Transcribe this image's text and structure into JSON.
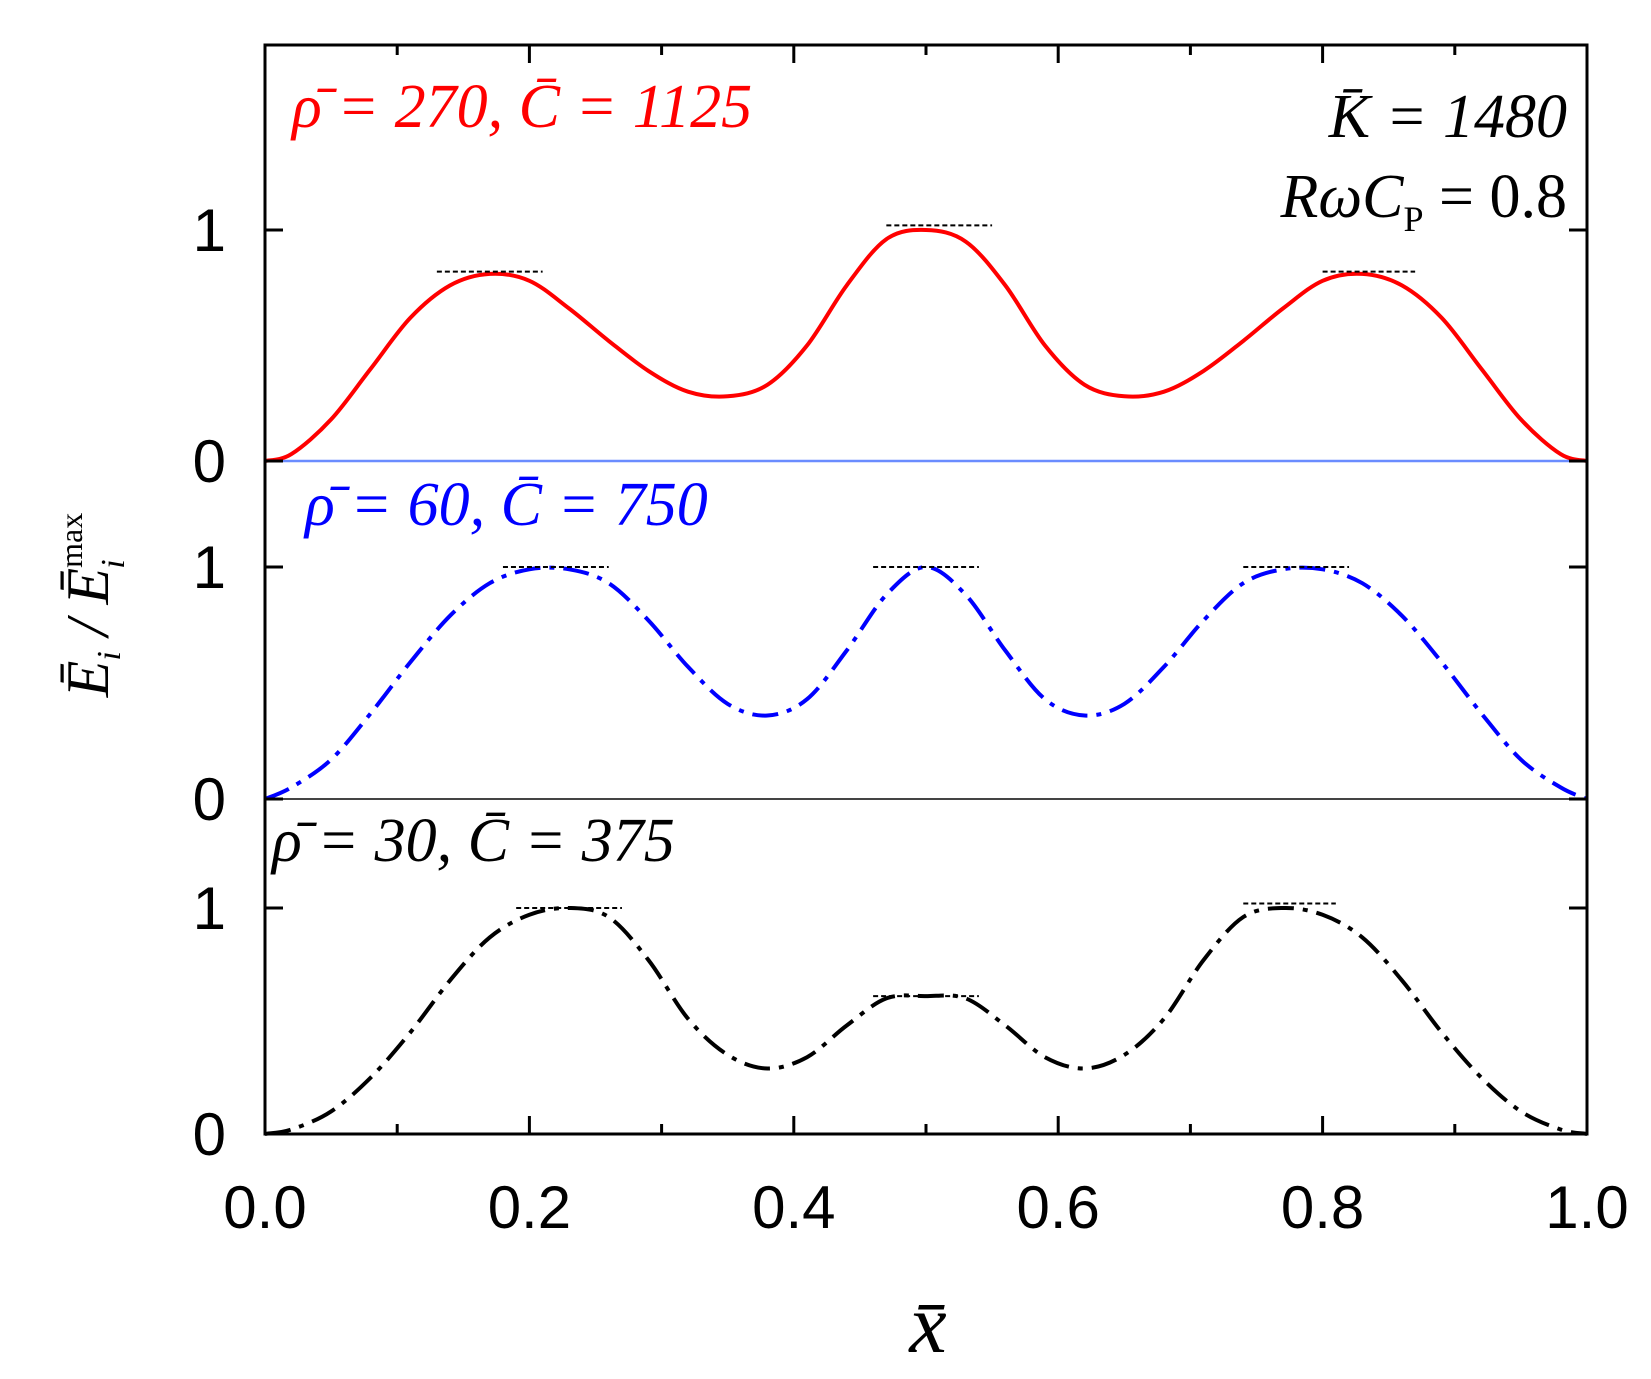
{
  "chart_data": {
    "type": "line",
    "xlabel": "x̄",
    "ylabel": {
      "prefix": "Ē",
      "sub1": "i",
      "mid": " / Ē",
      "sup": "max",
      "sub2": "i"
    },
    "xlim": [
      0.0,
      1.0
    ],
    "x_ticks": [
      "0.0",
      "0.2",
      "0.4",
      "0.6",
      "0.8",
      "1.0"
    ],
    "panel_ylim": [
      0,
      1
    ],
    "panel_y_ticks": [
      "0",
      "1"
    ],
    "global_annotations": {
      "K": "K̄ = 1480",
      "RwCp": {
        "main": "RωC",
        "sub": "P",
        "rest": " = 0.8"
      }
    },
    "series": [
      {
        "label": "ρ̄ = 270,  C̄ = 1125",
        "color": "#ff0000",
        "style": "solid",
        "x": [
          0.0,
          0.02,
          0.05,
          0.08,
          0.11,
          0.14,
          0.17,
          0.2,
          0.23,
          0.26,
          0.29,
          0.32,
          0.35,
          0.38,
          0.41,
          0.44,
          0.47,
          0.5,
          0.53,
          0.56,
          0.59,
          0.62,
          0.65,
          0.68,
          0.71,
          0.74,
          0.77,
          0.8,
          0.83,
          0.86,
          0.89,
          0.92,
          0.95,
          0.98,
          1.0
        ],
        "y": [
          0.0,
          0.03,
          0.18,
          0.4,
          0.62,
          0.76,
          0.81,
          0.78,
          0.66,
          0.52,
          0.39,
          0.3,
          0.28,
          0.33,
          0.5,
          0.76,
          0.96,
          1.0,
          0.95,
          0.76,
          0.5,
          0.33,
          0.28,
          0.3,
          0.39,
          0.52,
          0.66,
          0.78,
          0.81,
          0.76,
          0.62,
          0.4,
          0.18,
          0.03,
          0.0
        ],
        "peak_markers": [
          {
            "x0": 0.13,
            "x1": 0.21,
            "y": 0.82
          },
          {
            "x0": 0.47,
            "x1": 0.55,
            "y": 1.02
          },
          {
            "x0": 0.8,
            "x1": 0.87,
            "y": 0.82
          }
        ]
      },
      {
        "label": "ρ̄ = 60,  C̄ = 750",
        "color": "#0000ff",
        "style": "dashdot",
        "x": [
          0.0,
          0.02,
          0.05,
          0.08,
          0.11,
          0.14,
          0.17,
          0.2,
          0.23,
          0.26,
          0.29,
          0.32,
          0.35,
          0.38,
          0.41,
          0.44,
          0.47,
          0.5,
          0.53,
          0.56,
          0.59,
          0.62,
          0.65,
          0.68,
          0.71,
          0.74,
          0.77,
          0.8,
          0.83,
          0.86,
          0.89,
          0.92,
          0.95,
          0.98,
          1.0
        ],
        "y": [
          0.0,
          0.05,
          0.17,
          0.37,
          0.59,
          0.79,
          0.93,
          0.99,
          0.99,
          0.93,
          0.77,
          0.57,
          0.41,
          0.36,
          0.43,
          0.64,
          0.88,
          1.0,
          0.88,
          0.64,
          0.43,
          0.36,
          0.41,
          0.57,
          0.77,
          0.93,
          0.99,
          0.99,
          0.93,
          0.79,
          0.59,
          0.37,
          0.17,
          0.05,
          0.0
        ],
        "peak_markers": [
          {
            "x0": 0.18,
            "x1": 0.26,
            "y": 1.0
          },
          {
            "x0": 0.46,
            "x1": 0.54,
            "y": 1.0
          },
          {
            "x0": 0.74,
            "x1": 0.82,
            "y": 1.0
          }
        ]
      },
      {
        "label": "ρ̄ = 30,  C̄ = 375",
        "color": "#000000",
        "style": "dashdot",
        "x": [
          0.0,
          0.02,
          0.05,
          0.08,
          0.11,
          0.14,
          0.17,
          0.2,
          0.23,
          0.26,
          0.29,
          0.32,
          0.35,
          0.38,
          0.41,
          0.44,
          0.47,
          0.5,
          0.53,
          0.56,
          0.59,
          0.62,
          0.65,
          0.68,
          0.71,
          0.74,
          0.77,
          0.8,
          0.83,
          0.86,
          0.89,
          0.92,
          0.95,
          0.98,
          1.0
        ],
        "y": [
          0.0,
          0.02,
          0.1,
          0.25,
          0.45,
          0.68,
          0.87,
          0.97,
          1.0,
          0.96,
          0.77,
          0.51,
          0.35,
          0.29,
          0.34,
          0.48,
          0.6,
          0.61,
          0.6,
          0.48,
          0.34,
          0.29,
          0.35,
          0.51,
          0.77,
          0.96,
          1.0,
          0.97,
          0.87,
          0.68,
          0.45,
          0.25,
          0.1,
          0.02,
          0.0
        ],
        "peak_markers": [
          {
            "x0": 0.19,
            "x1": 0.27,
            "y": 1.0
          },
          {
            "x0": 0.46,
            "x1": 0.54,
            "y": 0.61
          },
          {
            "x0": 0.74,
            "x1": 0.81,
            "y": 1.02
          }
        ]
      }
    ]
  }
}
